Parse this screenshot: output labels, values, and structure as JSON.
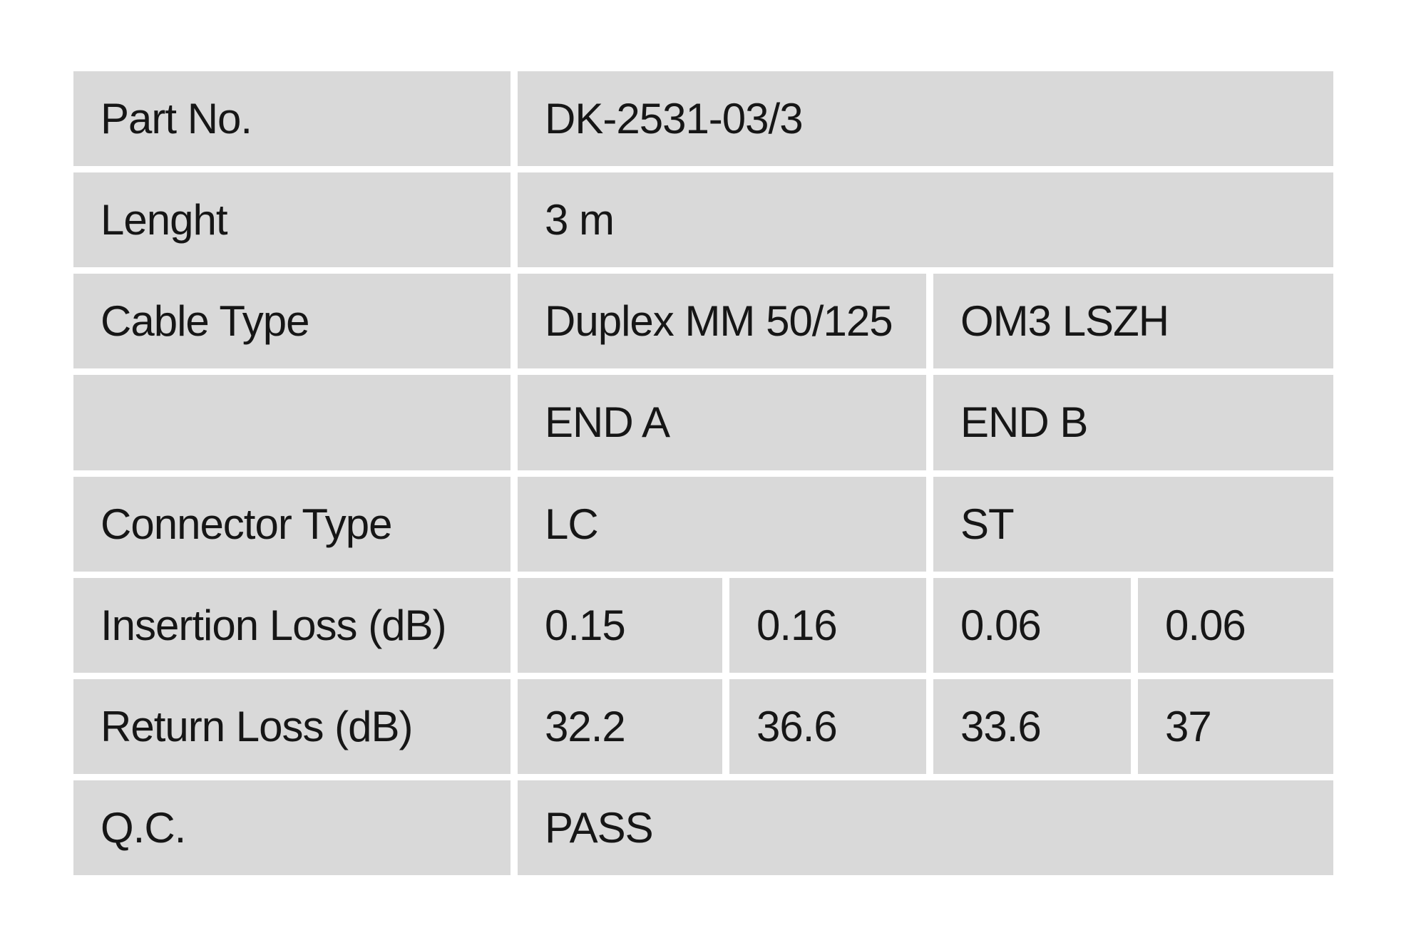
{
  "document": {
    "type": "cable-datasheet-spec-table",
    "colors": {
      "page_background": "#ffffff",
      "cell_background": "#d9d9d9",
      "text": "#161616"
    },
    "table": {
      "rows": [
        {
          "label": "Part No.",
          "value": "DK-2531-03/3"
        },
        {
          "label": "Lenght",
          "value": "3 m"
        },
        {
          "label": "Cable Type",
          "value_a": "Duplex MM 50/125",
          "value_b": "OM3 LSZH"
        },
        {
          "label": "",
          "value_a": "END A",
          "value_b": "END B"
        },
        {
          "label": "Connector Type",
          "value_a": "LC",
          "value_b": "ST"
        },
        {
          "label": "Insertion Loss (dB)",
          "values": [
            "0.15",
            "0.16",
            "0.06",
            "0.06"
          ]
        },
        {
          "label": "Return Loss (dB)",
          "values": [
            "32.2",
            "36.6",
            "33.6",
            "37"
          ]
        },
        {
          "label": "Q.C.",
          "value": "PASS"
        }
      ]
    }
  }
}
